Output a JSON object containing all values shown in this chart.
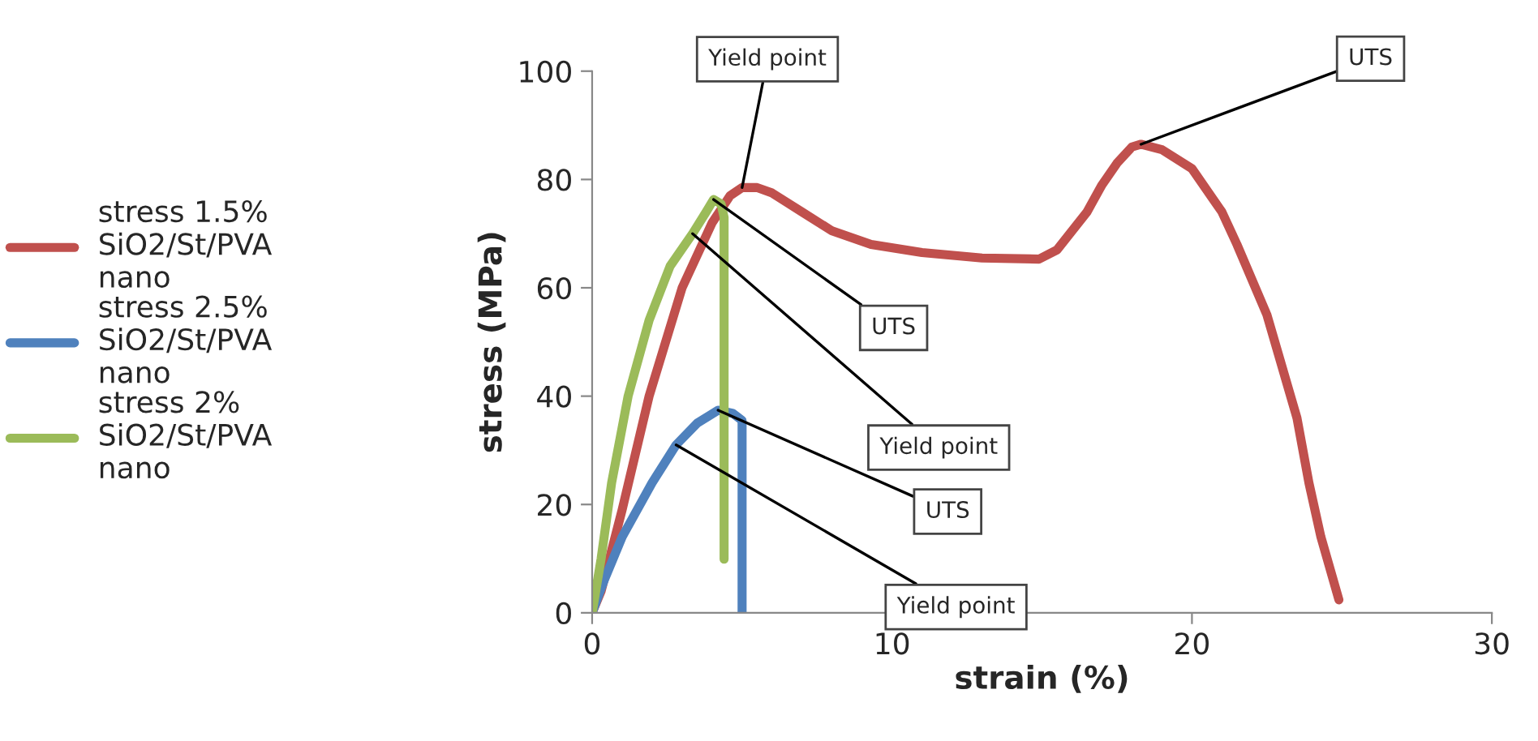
{
  "chart_data": {
    "type": "line",
    "xlabel": "strain (%)",
    "ylabel": "stress (MPa)",
    "xlim": [
      0,
      30
    ],
    "xticks": [
      0,
      10,
      20,
      30
    ],
    "ylim": [
      0,
      100
    ],
    "yticks": [
      0,
      20,
      40,
      60,
      80,
      100
    ],
    "grid": false,
    "legend": "left",
    "marker": "none",
    "line_style": "solid",
    "series": [
      {
        "name": "stress 1.5% SiO2/St/PVA nano",
        "color": "#c0504d",
        "x": [
          0,
          0.3,
          1,
          1.9,
          3,
          4,
          4.6,
          5,
          5.5,
          6,
          7,
          8,
          9.3,
          11,
          13,
          14.9,
          15.5,
          16.5,
          17,
          17.5,
          18,
          18.3,
          19,
          20,
          21,
          21.5,
          22.5,
          23.5,
          23.9,
          24.3,
          24.9
        ],
        "values": [
          0,
          4,
          19,
          40,
          60,
          72,
          77,
          78.5,
          78.5,
          77.5,
          74,
          70.5,
          68,
          66.5,
          65.5,
          65.3,
          67,
          74,
          79,
          83,
          86,
          86.5,
          85.5,
          82,
          74,
          68,
          55,
          36,
          24,
          14,
          2.4
        ]
      },
      {
        "name": "stress 2.5% SiO2/St/PVA nano",
        "color": "#4f81bd",
        "x": [
          0,
          0.4,
          1,
          2,
          2.8,
          3.5,
          4.2,
          4.7,
          5,
          5,
          5
        ],
        "values": [
          0,
          6,
          14,
          24,
          31,
          35,
          37.4,
          36.8,
          35.5,
          20,
          0
        ]
      },
      {
        "name": "stress 2% SiO2/St/PVA nano",
        "color": "#9bbb59",
        "x": [
          0,
          0.3,
          0.65,
          1.2,
          1.9,
          2.6,
          3.35,
          3.8,
          4.05,
          4.3,
          4.4,
          4.4,
          4.4
        ],
        "values": [
          0,
          10,
          24,
          40,
          54,
          64,
          70,
          74,
          76.3,
          75.5,
          73,
          40,
          9.9
        ]
      }
    ],
    "annotations": [
      {
        "text": "Yield point",
        "x": 5.0,
        "y": 78.5
      },
      {
        "text": "UTS",
        "x": 4.05,
        "y": 76.3
      },
      {
        "text": "Yield point",
        "x": 3.35,
        "y": 70
      },
      {
        "text": "UTS",
        "x": 4.2,
        "y": 37.4
      },
      {
        "text": "Yield point",
        "x": 2.8,
        "y": 31
      },
      {
        "text": "UTS",
        "x": 18.3,
        "y": 86.5
      }
    ]
  }
}
